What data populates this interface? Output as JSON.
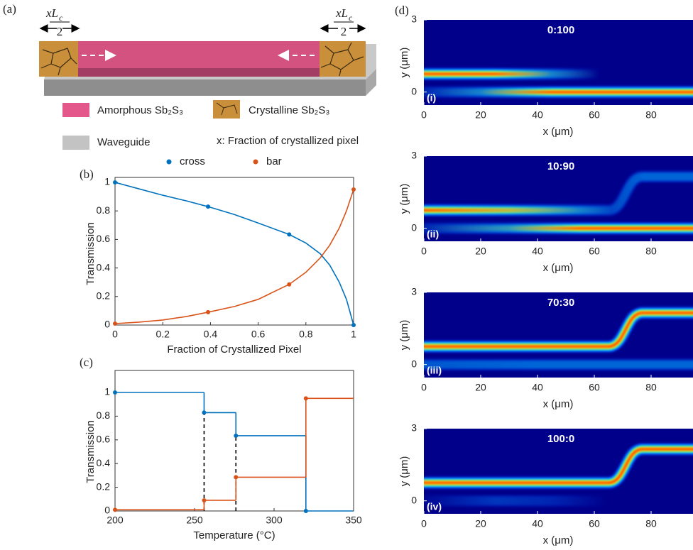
{
  "diagram": {
    "panel_label": "(a)",
    "fraction_num_main": "xL",
    "fraction_num_sub": "c",
    "fraction_den": "2",
    "legend": [
      "Amorphous Sb₂S₃",
      "Crystalline Sb₂S₃",
      "Waveguide",
      "x: Fraction of crystallized pixel"
    ]
  },
  "chart_data": [
    {
      "type": "line",
      "panel_label": "(b)",
      "xlabel": "Fraction of Crystallized Pixel",
      "ylabel": "Transmission",
      "xlim": [
        0,
        1
      ],
      "ylim": [
        0,
        1
      ],
      "xticks": [
        0,
        0.2,
        0.4,
        0.6,
        0.8,
        1
      ],
      "yticks": [
        0,
        0.2,
        0.4,
        0.6,
        0.8,
        1
      ],
      "series": [
        {
          "name": "cross",
          "color": "#0072bd",
          "x": [
            0,
            0.39,
            0.73,
            1
          ],
          "values": [
            1,
            0.83,
            0.635,
            0.0
          ],
          "curve_x": [
            0,
            0.1,
            0.2,
            0.3,
            0.39,
            0.5,
            0.6,
            0.73,
            0.8,
            0.86,
            0.9,
            0.94,
            0.97,
            1
          ],
          "curve_values": [
            1,
            0.955,
            0.91,
            0.87,
            0.83,
            0.775,
            0.715,
            0.635,
            0.575,
            0.5,
            0.42,
            0.3,
            0.18,
            0.0
          ]
        },
        {
          "name": "bar",
          "color": "#d95319",
          "x": [
            0,
            0.39,
            0.73,
            1
          ],
          "values": [
            0.01,
            0.09,
            0.285,
            0.95
          ],
          "curve_x": [
            0,
            0.1,
            0.2,
            0.3,
            0.39,
            0.5,
            0.6,
            0.73,
            0.8,
            0.86,
            0.9,
            0.94,
            0.97,
            1
          ],
          "curve_values": [
            0.01,
            0.02,
            0.035,
            0.06,
            0.09,
            0.13,
            0.18,
            0.285,
            0.37,
            0.47,
            0.56,
            0.68,
            0.8,
            0.95
          ]
        }
      ]
    },
    {
      "type": "step",
      "panel_label": "(c)",
      "xlabel": "Temperature (°C)",
      "ylabel": "Transmission",
      "xlim": [
        200,
        350
      ],
      "ylim": [
        0,
        1
      ],
      "xticks": [
        200,
        250,
        300,
        350
      ],
      "yticks": [
        0,
        0.2,
        0.4,
        0.6,
        0.8,
        1
      ],
      "series": [
        {
          "color": "#0072bd",
          "x": [
            200,
            256,
            276,
            320
          ],
          "values": [
            1,
            0.83,
            0.635,
            0.0
          ]
        },
        {
          "color": "#d95319",
          "x": [
            200,
            256,
            276,
            320
          ],
          "values": [
            0.01,
            0.09,
            0.285,
            0.95
          ]
        }
      ]
    },
    {
      "type": "heatmap",
      "panel_label": "(d)",
      "title": "0:100",
      "label": "(i)",
      "xlabel": "x (μm)",
      "ylabel": "y (μm)",
      "xlim": [
        0,
        94.75
      ],
      "ylim": [
        -0.54,
        3
      ],
      "xticks": [
        0,
        20,
        40,
        60,
        80
      ],
      "yticks": [
        0,
        3
      ]
    },
    {
      "type": "heatmap",
      "title": "10:90",
      "label": "(ii)",
      "xlabel": "x (μm)",
      "ylabel": "y (μm)",
      "xlim": [
        0,
        94.75
      ],
      "ylim": [
        -0.54,
        3
      ],
      "xticks": [
        0,
        20,
        40,
        60,
        80
      ],
      "yticks": [
        0,
        3
      ]
    },
    {
      "type": "heatmap",
      "title": "70:30",
      "label": "(iii)",
      "xlabel": "x (μm)",
      "ylabel": "y (μm)",
      "xlim": [
        0,
        94.75
      ],
      "ylim": [
        -0.54,
        3
      ],
      "xticks": [
        0,
        20,
        40,
        60,
        80
      ],
      "yticks": [
        0,
        3
      ]
    },
    {
      "type": "heatmap",
      "title": "100:0",
      "label": "(iv)",
      "xlabel": "x (μm)",
      "ylabel": "y (μm)",
      "xlim": [
        0,
        94.75
      ],
      "ylim": [
        -0.54,
        3
      ],
      "xticks": [
        0,
        20,
        40,
        60,
        80
      ],
      "yticks": [
        0,
        3
      ]
    }
  ]
}
